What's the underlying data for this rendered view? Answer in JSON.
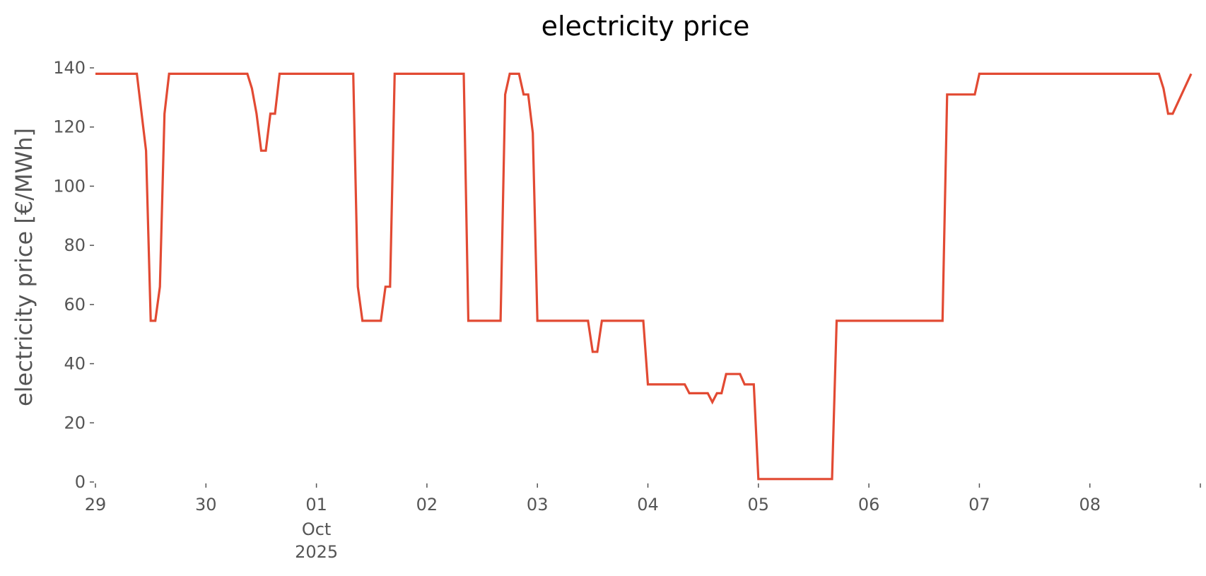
{
  "chart_data": {
    "type": "line",
    "title": "electricity price",
    "xlabel": "",
    "ylabel": "electricity price [€/MWh]",
    "ylim": [
      0,
      140
    ],
    "xlim": [
      "2025-09-29T00:00",
      "2025-10-08T22:00"
    ],
    "y_ticks": [
      0,
      20,
      40,
      60,
      80,
      100,
      120,
      140
    ],
    "x_ticks": [
      {
        "date": "2025-09-29T00:00",
        "label": "29"
      },
      {
        "date": "2025-09-30T00:00",
        "label": "30"
      },
      {
        "date": "2025-10-01T00:00",
        "label": "01",
        "sublabel_1": "Oct",
        "sublabel_2": "2025"
      },
      {
        "date": "2025-10-02T00:00",
        "label": "02"
      },
      {
        "date": "2025-10-03T00:00",
        "label": "03"
      },
      {
        "date": "2025-10-04T00:00",
        "label": "04"
      },
      {
        "date": "2025-10-05T00:00",
        "label": "05"
      },
      {
        "date": "2025-10-06T00:00",
        "label": "06"
      },
      {
        "date": "2025-10-07T00:00",
        "label": "07"
      },
      {
        "date": "2025-10-08T00:00",
        "label": "08"
      },
      {
        "date": "2025-10-09T00:00",
        "label": ""
      }
    ],
    "grid": false,
    "line_color": "#E24A33",
    "series": [
      {
        "x": [
          "2025-09-29T00:00",
          "2025-09-29T09:00",
          "2025-09-29T11:00",
          "2025-09-29T12:00",
          "2025-09-29T13:00",
          "2025-09-29T14:00",
          "2025-09-29T15:00",
          "2025-09-29T16:00",
          "2025-09-30T09:00",
          "2025-09-30T10:00",
          "2025-09-30T11:00",
          "2025-09-30T12:00",
          "2025-09-30T13:00",
          "2025-09-30T14:00",
          "2025-09-30T15:00",
          "2025-09-30T16:00",
          "2025-10-01T08:00",
          "2025-10-01T09:00",
          "2025-10-01T10:00",
          "2025-10-01T14:00",
          "2025-10-01T15:00",
          "2025-10-01T16:00",
          "2025-10-01T17:00",
          "2025-10-02T08:00",
          "2025-10-02T09:00",
          "2025-10-02T16:00",
          "2025-10-02T17:00",
          "2025-10-02T18:00",
          "2025-10-02T20:00",
          "2025-10-02T21:00",
          "2025-10-02T22:00",
          "2025-10-02T23:00",
          "2025-10-03T00:00",
          "2025-10-03T11:00",
          "2025-10-03T12:00",
          "2025-10-03T13:00",
          "2025-10-03T14:00",
          "2025-10-03T23:00",
          "2025-10-04T00:00",
          "2025-10-04T08:00",
          "2025-10-04T09:00",
          "2025-10-04T13:00",
          "2025-10-04T14:00",
          "2025-10-04T15:00",
          "2025-10-04T16:00",
          "2025-10-04T17:00",
          "2025-10-04T20:00",
          "2025-10-04T21:00",
          "2025-10-04T23:00",
          "2025-10-05T00:00",
          "2025-10-05T16:00",
          "2025-10-05T17:00",
          "2025-10-06T16:00",
          "2025-10-06T17:00",
          "2025-10-06T23:00",
          "2025-10-07T00:00",
          "2025-10-08T15:00",
          "2025-10-08T16:00",
          "2025-10-08T17:00",
          "2025-10-08T18:00",
          "2025-10-08T22:00"
        ],
        "y": [
          138,
          138,
          112,
          54.5,
          54.5,
          66,
          124.5,
          138,
          138,
          133,
          124.5,
          112,
          112,
          124.5,
          124.5,
          138,
          138,
          66,
          54.5,
          54.5,
          66,
          66,
          138,
          138,
          54.5,
          54.5,
          131,
          138,
          138,
          131,
          131,
          118,
          54.5,
          54.5,
          44,
          44,
          54.5,
          54.5,
          33,
          33,
          30,
          30,
          27,
          30,
          30,
          36.5,
          36.5,
          33,
          33,
          1,
          1,
          54.5,
          54.5,
          131,
          131,
          138,
          138,
          133,
          124.5,
          124.5,
          138
        ]
      }
    ]
  }
}
